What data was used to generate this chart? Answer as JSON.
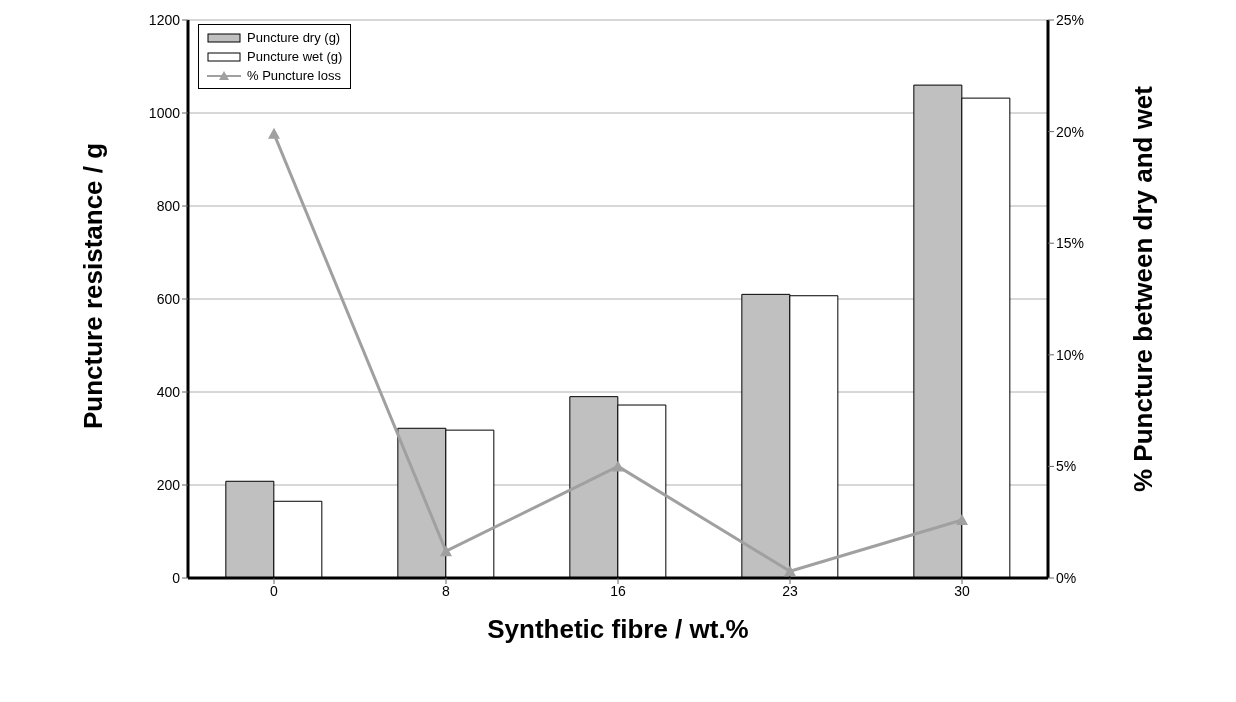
{
  "chart_data": {
    "type": "bar",
    "xlabel": "Synthetic fibre / wt.%",
    "ylabel": "Puncture resistance / g",
    "y2label": "% Puncture between dry and wet",
    "categories": [
      "0",
      "8",
      "16",
      "23",
      "30"
    ],
    "series": [
      {
        "name": "Puncture dry (g)",
        "color": "#c0c0c0",
        "values": [
          208,
          322,
          390,
          610,
          1060
        ]
      },
      {
        "name": "Puncture wet (g)",
        "color": "#ffffff",
        "values": [
          165,
          318,
          372,
          607,
          1032
        ]
      },
      {
        "name": "%  Puncture loss",
        "type": "line",
        "axis": "y2",
        "color": "#a0a0a0",
        "marker": "triangle",
        "values": [
          19.9,
          1.2,
          5.0,
          0.3,
          2.6
        ]
      }
    ],
    "ylim": [
      0,
      1200
    ],
    "yticks": [
      0,
      200,
      400,
      600,
      800,
      1000,
      1200
    ],
    "y2lim": [
      0,
      25
    ],
    "y2ticks": [
      {
        "value": 0,
        "label": "0%"
      },
      {
        "value": 5,
        "label": "5%"
      },
      {
        "value": 10,
        "label": "10%"
      },
      {
        "value": 15,
        "label": "15%"
      },
      {
        "value": 20,
        "label": "20%"
      },
      {
        "value": 25,
        "label": "25%"
      }
    ],
    "grid": "y",
    "legend": "top left"
  }
}
